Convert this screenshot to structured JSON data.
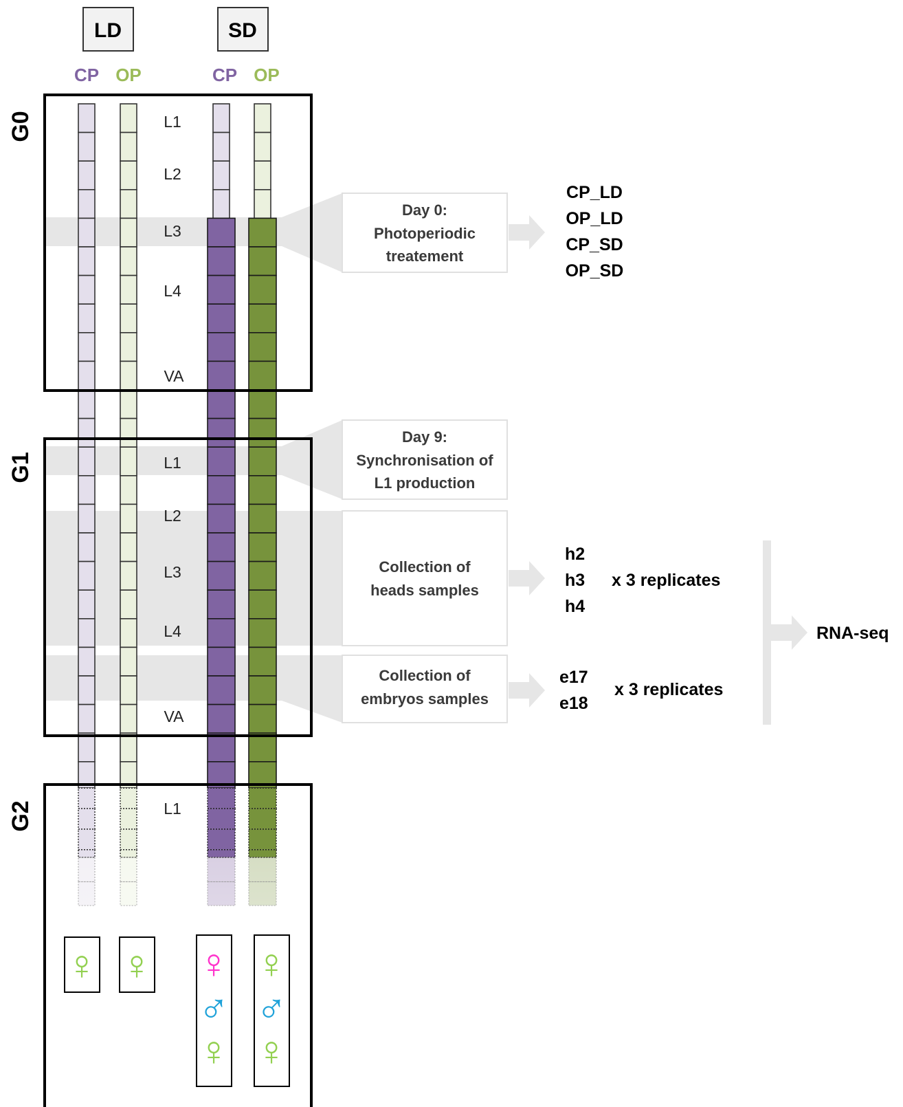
{
  "colors": {
    "cp_accent": "#8064a2",
    "op_accent": "#9bbb59",
    "cp_light": "#e4dfec",
    "op_light": "#ebf1de",
    "cp_dark": "#8064a2",
    "op_dark": "#77933c",
    "band": "#e6e6e6",
    "female_green": "#92d050",
    "female_pink": "#ff33cc",
    "male_blue": "#1fa2d9"
  },
  "conditions": [
    {
      "label": "LD",
      "columns": [
        {
          "label": "CP"
        },
        {
          "label": "OP"
        }
      ]
    },
    {
      "label": "SD",
      "columns": [
        {
          "label": "CP"
        },
        {
          "label": "OP"
        }
      ]
    }
  ],
  "generations": [
    {
      "label": "G0",
      "stages": [
        "L1",
        "L2",
        "L3",
        "L4",
        "VA"
      ]
    },
    {
      "label": "G1",
      "stages": [
        "L1",
        "L2",
        "L3",
        "L4",
        "VA"
      ]
    },
    {
      "label": "G2",
      "stages": [
        "L1"
      ]
    }
  ],
  "callouts": [
    {
      "lines": [
        "Day 0:",
        "Photoperiodic",
        "treatement"
      ]
    },
    {
      "lines": [
        "Day 9:",
        "Synchronisation of",
        "L1 production"
      ]
    },
    {
      "lines": [
        "Collection of",
        "heads samples"
      ]
    },
    {
      "lines": [
        "Collection of",
        "embryos samples"
      ]
    }
  ],
  "outputs": {
    "treatments": [
      "CP_LD",
      "OP_LD",
      "CP_SD",
      "OP_SD"
    ],
    "heads": [
      "h2",
      "h3",
      "h4"
    ],
    "embryos": [
      "e17",
      "e18"
    ],
    "replicates": "x 3 replicates",
    "rnaseq": "RNA-seq"
  },
  "offspring": [
    {
      "column": "LD CP",
      "symbols": [
        {
          "icon": "female-green-icon",
          "glyph": "♀"
        }
      ]
    },
    {
      "column": "LD OP",
      "symbols": [
        {
          "icon": "female-green-icon",
          "glyph": "♀"
        }
      ]
    },
    {
      "column": "SD CP",
      "symbols": [
        {
          "icon": "female-pink-icon",
          "glyph": "♀"
        },
        {
          "icon": "male-blue-icon",
          "glyph": "♂"
        },
        {
          "icon": "female-green-icon",
          "glyph": "♀"
        }
      ]
    },
    {
      "column": "SD OP",
      "symbols": [
        {
          "icon": "female-green-icon",
          "glyph": "♀"
        },
        {
          "icon": "male-blue-icon",
          "glyph": "♂"
        },
        {
          "icon": "female-green-icon",
          "glyph": "♀"
        }
      ]
    }
  ]
}
